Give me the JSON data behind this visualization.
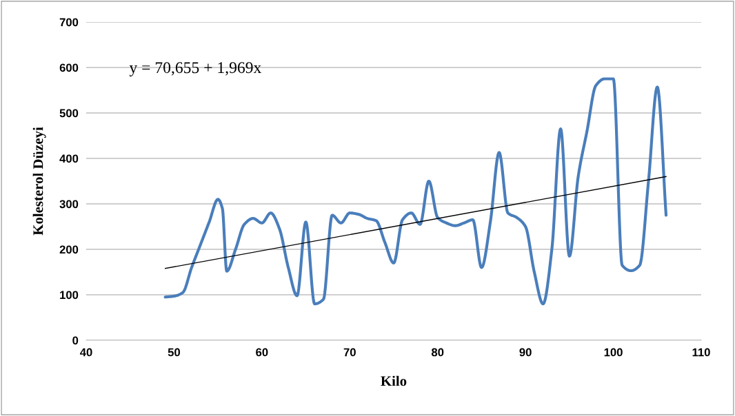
{
  "chart_data": {
    "type": "line",
    "xlabel": "Kilo",
    "ylabel": "Kolesterol Düzeyi",
    "annotations": [
      "y = 70,655 + 1,969x"
    ],
    "xlim": [
      40,
      110
    ],
    "xticks": [
      40,
      50,
      60,
      70,
      80,
      90,
      100,
      110
    ],
    "ylim": [
      0,
      700
    ],
    "yticks": [
      0,
      100,
      200,
      300,
      400,
      500,
      600,
      700
    ],
    "grid": "y",
    "legend": false,
    "marker": "none",
    "line_style": "solid",
    "series": [
      {
        "color": "#4a7ebb",
        "x": [
          49,
          50,
          51,
          52,
          53,
          54,
          55,
          55.5,
          56,
          57,
          58,
          59,
          60,
          61,
          62,
          63,
          64,
          65,
          66,
          67,
          68,
          69,
          70,
          71,
          72,
          73,
          74,
          75,
          76,
          77,
          78,
          79,
          80,
          81,
          82,
          83,
          84,
          85,
          86,
          87,
          88,
          89,
          90,
          91,
          92,
          93,
          94,
          95,
          96,
          97,
          98,
          99,
          100,
          101,
          102,
          103,
          104,
          105,
          106
        ],
        "values": [
          95,
          97,
          105,
          160,
          210,
          260,
          310,
          290,
          152,
          200,
          255,
          268,
          258,
          280,
          245,
          160,
          98,
          260,
          80,
          90,
          275,
          258,
          280,
          277,
          268,
          263,
          215,
          170,
          265,
          280,
          255,
          350,
          270,
          258,
          252,
          258,
          265,
          160,
          260,
          413,
          280,
          270,
          250,
          150,
          80,
          200,
          465,
          185,
          360,
          460,
          560,
          575,
          575,
          165,
          153,
          165,
          350,
          557,
          275
        ]
      },
      {
        "color": "#000000",
        "x": [
          49,
          106
        ],
        "values": [
          158,
          360
        ]
      }
    ]
  }
}
